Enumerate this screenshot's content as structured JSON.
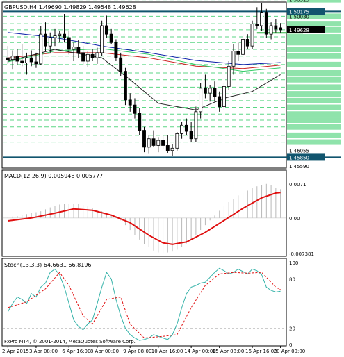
{
  "symbol_header": "GBPUSD,H4  1.49690  1.49829  1.49548  1.49628",
  "chart_data": {
    "type": "candlestick",
    "symbol": "GBPUSD",
    "timeframe": "H4",
    "ohlc_label": {
      "open": 1.4969,
      "high": 1.49829,
      "low": 1.49548,
      "close": 1.49628
    },
    "ylim": [
      1.4555,
      1.5043
    ],
    "price_tick_labels": [
      "1.50525",
      "1.50175",
      "1.50030",
      "1.49628",
      "1.46055",
      "1.45850",
      "1.45590"
    ],
    "x_tick_labels": [
      "2 Apr 2015",
      "3 Apr 08:00",
      "6 Apr 16:00",
      "8 Apr 00:00",
      "9 Apr 08:00",
      "10 Apr 16:00",
      "14 Apr 00:00",
      "15 Apr 08:00",
      "16 Apr 16:00",
      "20 Apr 00:00"
    ],
    "candles": [
      {
        "o": 1.488,
        "h": 1.4915,
        "l": 1.4862,
        "c": 1.4875
      },
      {
        "o": 1.4875,
        "h": 1.4902,
        "l": 1.4845,
        "c": 1.4885
      },
      {
        "o": 1.4885,
        "h": 1.4905,
        "l": 1.486,
        "c": 1.487
      },
      {
        "o": 1.487,
        "h": 1.492,
        "l": 1.4855,
        "c": 1.4865
      },
      {
        "o": 1.4865,
        "h": 1.4895,
        "l": 1.483,
        "c": 1.488
      },
      {
        "o": 1.488,
        "h": 1.4902,
        "l": 1.4855,
        "c": 1.4868
      },
      {
        "o": 1.4868,
        "h": 1.4895,
        "l": 1.485,
        "c": 1.4862
      },
      {
        "o": 1.4862,
        "h": 1.4975,
        "l": 1.4858,
        "c": 1.495
      },
      {
        "o": 1.495,
        "h": 1.4985,
        "l": 1.49,
        "c": 1.4915
      },
      {
        "o": 1.4915,
        "h": 1.4955,
        "l": 1.4895,
        "c": 1.494
      },
      {
        "o": 1.494,
        "h": 1.4965,
        "l": 1.4915,
        "c": 1.4945
      },
      {
        "o": 1.4945,
        "h": 1.496,
        "l": 1.4925,
        "c": 1.495
      },
      {
        "o": 1.495,
        "h": 1.501,
        "l": 1.4925,
        "c": 1.494
      },
      {
        "o": 1.494,
        "h": 1.496,
        "l": 1.489,
        "c": 1.4905
      },
      {
        "o": 1.4905,
        "h": 1.4925,
        "l": 1.487,
        "c": 1.4912
      },
      {
        "o": 1.4912,
        "h": 1.4932,
        "l": 1.488,
        "c": 1.4895
      },
      {
        "o": 1.4895,
        "h": 1.4915,
        "l": 1.486,
        "c": 1.487
      },
      {
        "o": 1.487,
        "h": 1.49,
        "l": 1.4852,
        "c": 1.489
      },
      {
        "o": 1.489,
        "h": 1.4905,
        "l": 1.487,
        "c": 1.488
      },
      {
        "o": 1.488,
        "h": 1.491,
        "l": 1.4862,
        "c": 1.4895
      },
      {
        "o": 1.4895,
        "h": 1.499,
        "l": 1.4885,
        "c": 1.4975
      },
      {
        "o": 1.4975,
        "h": 1.5005,
        "l": 1.494,
        "c": 1.495
      },
      {
        "o": 1.495,
        "h": 1.4965,
        "l": 1.492,
        "c": 1.4925
      },
      {
        "o": 1.4925,
        "h": 1.4935,
        "l": 1.487,
        "c": 1.488
      },
      {
        "o": 1.488,
        "h": 1.4895,
        "l": 1.4825,
        "c": 1.484
      },
      {
        "o": 1.484,
        "h": 1.485,
        "l": 1.474,
        "c": 1.4755
      },
      {
        "o": 1.4755,
        "h": 1.4775,
        "l": 1.472,
        "c": 1.474
      },
      {
        "o": 1.474,
        "h": 1.476,
        "l": 1.47,
        "c": 1.4715
      },
      {
        "o": 1.4715,
        "h": 1.473,
        "l": 1.465,
        "c": 1.4665
      },
      {
        "o": 1.4665,
        "h": 1.4675,
        "l": 1.46,
        "c": 1.4615
      },
      {
        "o": 1.4615,
        "h": 1.465,
        "l": 1.4595,
        "c": 1.464
      },
      {
        "o": 1.464,
        "h": 1.4665,
        "l": 1.4615,
        "c": 1.462
      },
      {
        "o": 1.462,
        "h": 1.4645,
        "l": 1.46,
        "c": 1.4635
      },
      {
        "o": 1.4635,
        "h": 1.465,
        "l": 1.461,
        "c": 1.462
      },
      {
        "o": 1.462,
        "h": 1.465,
        "l": 1.4598,
        "c": 1.4605
      },
      {
        "o": 1.4605,
        "h": 1.4625,
        "l": 1.4588,
        "c": 1.4612
      },
      {
        "o": 1.4612,
        "h": 1.466,
        "l": 1.4605,
        "c": 1.4655
      },
      {
        "o": 1.4655,
        "h": 1.469,
        "l": 1.464,
        "c": 1.468
      },
      {
        "o": 1.468,
        "h": 1.47,
        "l": 1.465,
        "c": 1.4662
      },
      {
        "o": 1.4662,
        "h": 1.469,
        "l": 1.463,
        "c": 1.464
      },
      {
        "o": 1.464,
        "h": 1.4735,
        "l": 1.463,
        "c": 1.472
      },
      {
        "o": 1.472,
        "h": 1.4805,
        "l": 1.47,
        "c": 1.479
      },
      {
        "o": 1.479,
        "h": 1.483,
        "l": 1.476,
        "c": 1.4775
      },
      {
        "o": 1.4775,
        "h": 1.48,
        "l": 1.475,
        "c": 1.479
      },
      {
        "o": 1.479,
        "h": 1.481,
        "l": 1.475,
        "c": 1.4765
      },
      {
        "o": 1.4765,
        "h": 1.478,
        "l": 1.472,
        "c": 1.4735
      },
      {
        "o": 1.4735,
        "h": 1.4805,
        "l": 1.4725,
        "c": 1.4795
      },
      {
        "o": 1.4795,
        "h": 1.487,
        "l": 1.4785,
        "c": 1.4855
      },
      {
        "o": 1.4855,
        "h": 1.492,
        "l": 1.483,
        "c": 1.49
      },
      {
        "o": 1.49,
        "h": 1.4925,
        "l": 1.487,
        "c": 1.489
      },
      {
        "o": 1.489,
        "h": 1.495,
        "l": 1.488,
        "c": 1.4935
      },
      {
        "o": 1.4935,
        "h": 1.495,
        "l": 1.4905,
        "c": 1.4915
      },
      {
        "o": 1.4915,
        "h": 1.499,
        "l": 1.4905,
        "c": 1.498
      },
      {
        "o": 1.498,
        "h": 1.503,
        "l": 1.4965,
        "c": 1.4975
      },
      {
        "o": 1.4975,
        "h": 1.5043,
        "l": 1.496,
        "c": 1.5015
      },
      {
        "o": 1.5015,
        "h": 1.5025,
        "l": 1.494,
        "c": 1.495
      },
      {
        "o": 1.495,
        "h": 1.4985,
        "l": 1.4935,
        "c": 1.4975
      },
      {
        "o": 1.4975,
        "h": 1.4995,
        "l": 1.4955,
        "c": 1.4965
      },
      {
        "o": 1.4969,
        "h": 1.49829,
        "l": 1.49548,
        "c": 1.49628
      }
    ],
    "moving_averages": [
      {
        "color": "#0b1fa8",
        "points": [
          [
            0,
            1.4955
          ],
          [
            10,
            1.494
          ],
          [
            20,
            1.4915
          ],
          [
            30,
            1.4895
          ],
          [
            40,
            1.4872
          ],
          [
            50,
            1.486
          ],
          [
            58,
            1.4866
          ]
        ]
      },
      {
        "color": "#cc2222",
        "points": [
          [
            0,
            1.488
          ],
          [
            10,
            1.4895
          ],
          [
            20,
            1.4895
          ],
          [
            30,
            1.488
          ],
          [
            40,
            1.4855
          ],
          [
            50,
            1.4848
          ],
          [
            58,
            1.4858
          ]
        ]
      },
      {
        "color": "#33cc66",
        "points": [
          [
            0,
            1.4868
          ],
          [
            10,
            1.49
          ],
          [
            20,
            1.4907
          ],
          [
            30,
            1.489
          ],
          [
            40,
            1.486
          ],
          [
            50,
            1.484
          ],
          [
            58,
            1.485
          ]
        ]
      },
      {
        "color": "#222222",
        "points": [
          [
            0,
            1.487
          ],
          [
            10,
            1.4905
          ],
          [
            20,
            1.488
          ],
          [
            26,
            1.4815
          ],
          [
            32,
            1.4745
          ],
          [
            40,
            1.4725
          ],
          [
            46,
            1.476
          ],
          [
            52,
            1.478
          ],
          [
            58,
            1.483
          ]
        ]
      }
    ],
    "horizontal_lines": [
      {
        "color": "#11556e",
        "value": 1.50175
      },
      {
        "color": "#11556e",
        "value": 1.4585
      },
      {
        "color": "#2fb344",
        "value": 1.4954,
        "from": 53
      }
    ],
    "dashed_level_color": "#33cc66",
    "dashed_levels": [
      1.5052,
      1.5003,
      1.4981,
      1.4963,
      1.4942,
      1.4925,
      1.4905,
      1.4885,
      1.486,
      1.4835,
      1.4815,
      1.4793,
      1.4773,
      1.4753,
      1.4733,
      1.4713,
      1.4695,
      1.4675,
      1.465,
      1.463
    ],
    "macd": {
      "label": "MACD(12,26,9)  0.005948  0.005777",
      "ylim": [
        -0.0077,
        0.0075
      ],
      "tick_labels": [
        "0.0071",
        "0.00",
        "-0.007381"
      ],
      "histogram": [
        0.0002,
        0.0003,
        0.0004,
        0.0006,
        0.0008,
        0.001,
        0.0012,
        0.0014,
        0.0018,
        0.0022,
        0.0025,
        0.0028,
        0.003,
        0.003,
        0.003,
        0.0029,
        0.0027,
        0.0024,
        0.002,
        0.0017,
        0.0014,
        0.0011,
        0.0007,
        0.0002,
        -0.0005,
        -0.0015,
        -0.0025,
        -0.0035,
        -0.0045,
        -0.0055,
        -0.006,
        -0.0068,
        -0.0072,
        -0.0073,
        -0.0072,
        -0.007,
        -0.0066,
        -0.006,
        -0.0053,
        -0.0045,
        -0.0035,
        -0.0025,
        -0.0015,
        -0.0005,
        0.0005,
        0.0015,
        0.0025,
        0.0033,
        0.004,
        0.0047,
        0.0052,
        0.0057,
        0.0062,
        0.0066,
        0.0069,
        0.0071,
        0.0068,
        0.0063,
        0.006
      ],
      "signal": [
        [
          0,
          -0.0006
        ],
        [
          5,
          0.0
        ],
        [
          10,
          0.001
        ],
        [
          14,
          0.0019
        ],
        [
          18,
          0.0016
        ],
        [
          22,
          0.0006
        ],
        [
          26,
          -0.001
        ],
        [
          30,
          -0.0036
        ],
        [
          33,
          -0.0052
        ],
        [
          35,
          -0.0055
        ],
        [
          38,
          -0.005
        ],
        [
          42,
          -0.003
        ],
        [
          46,
          -0.0005
        ],
        [
          50,
          0.002
        ],
        [
          54,
          0.0042
        ],
        [
          57,
          0.0052
        ],
        [
          58,
          0.0053
        ]
      ]
    },
    "stoch": {
      "label": "Stoch(13,3,3)  64.6631  66.8196",
      "ylim": [
        0,
        100
      ],
      "tick_labels": [
        "100",
        "80",
        "20",
        "0"
      ],
      "main": [
        40,
        50,
        58,
        55,
        50,
        62,
        58,
        70,
        75,
        88,
        92,
        85,
        70,
        50,
        30,
        22,
        18,
        25,
        30,
        50,
        70,
        88,
        80,
        55,
        35,
        20,
        12,
        8,
        5,
        6,
        8,
        12,
        10,
        8,
        6,
        12,
        25,
        45,
        62,
        70,
        72,
        75,
        76,
        82,
        88,
        93,
        90,
        86,
        88,
        92,
        89,
        86,
        92,
        90,
        85,
        70,
        66,
        64,
        65
      ],
      "signal": [
        [
          0,
          45
        ],
        [
          4,
          52
        ],
        [
          8,
          68
        ],
        [
          11,
          88
        ],
        [
          13,
          72
        ],
        [
          16,
          35
        ],
        [
          18,
          25
        ],
        [
          21,
          55
        ],
        [
          24,
          58
        ],
        [
          26,
          25
        ],
        [
          29,
          8
        ],
        [
          33,
          10
        ],
        [
          36,
          12
        ],
        [
          39,
          45
        ],
        [
          42,
          72
        ],
        [
          45,
          86
        ],
        [
          48,
          88
        ],
        [
          51,
          87
        ],
        [
          54,
          88
        ],
        [
          57,
          70
        ],
        [
          58,
          67
        ]
      ]
    }
  },
  "footer": {
    "copyright": "FxPro MT4, © 2001-2014, MetaQuotes Software Corp."
  }
}
